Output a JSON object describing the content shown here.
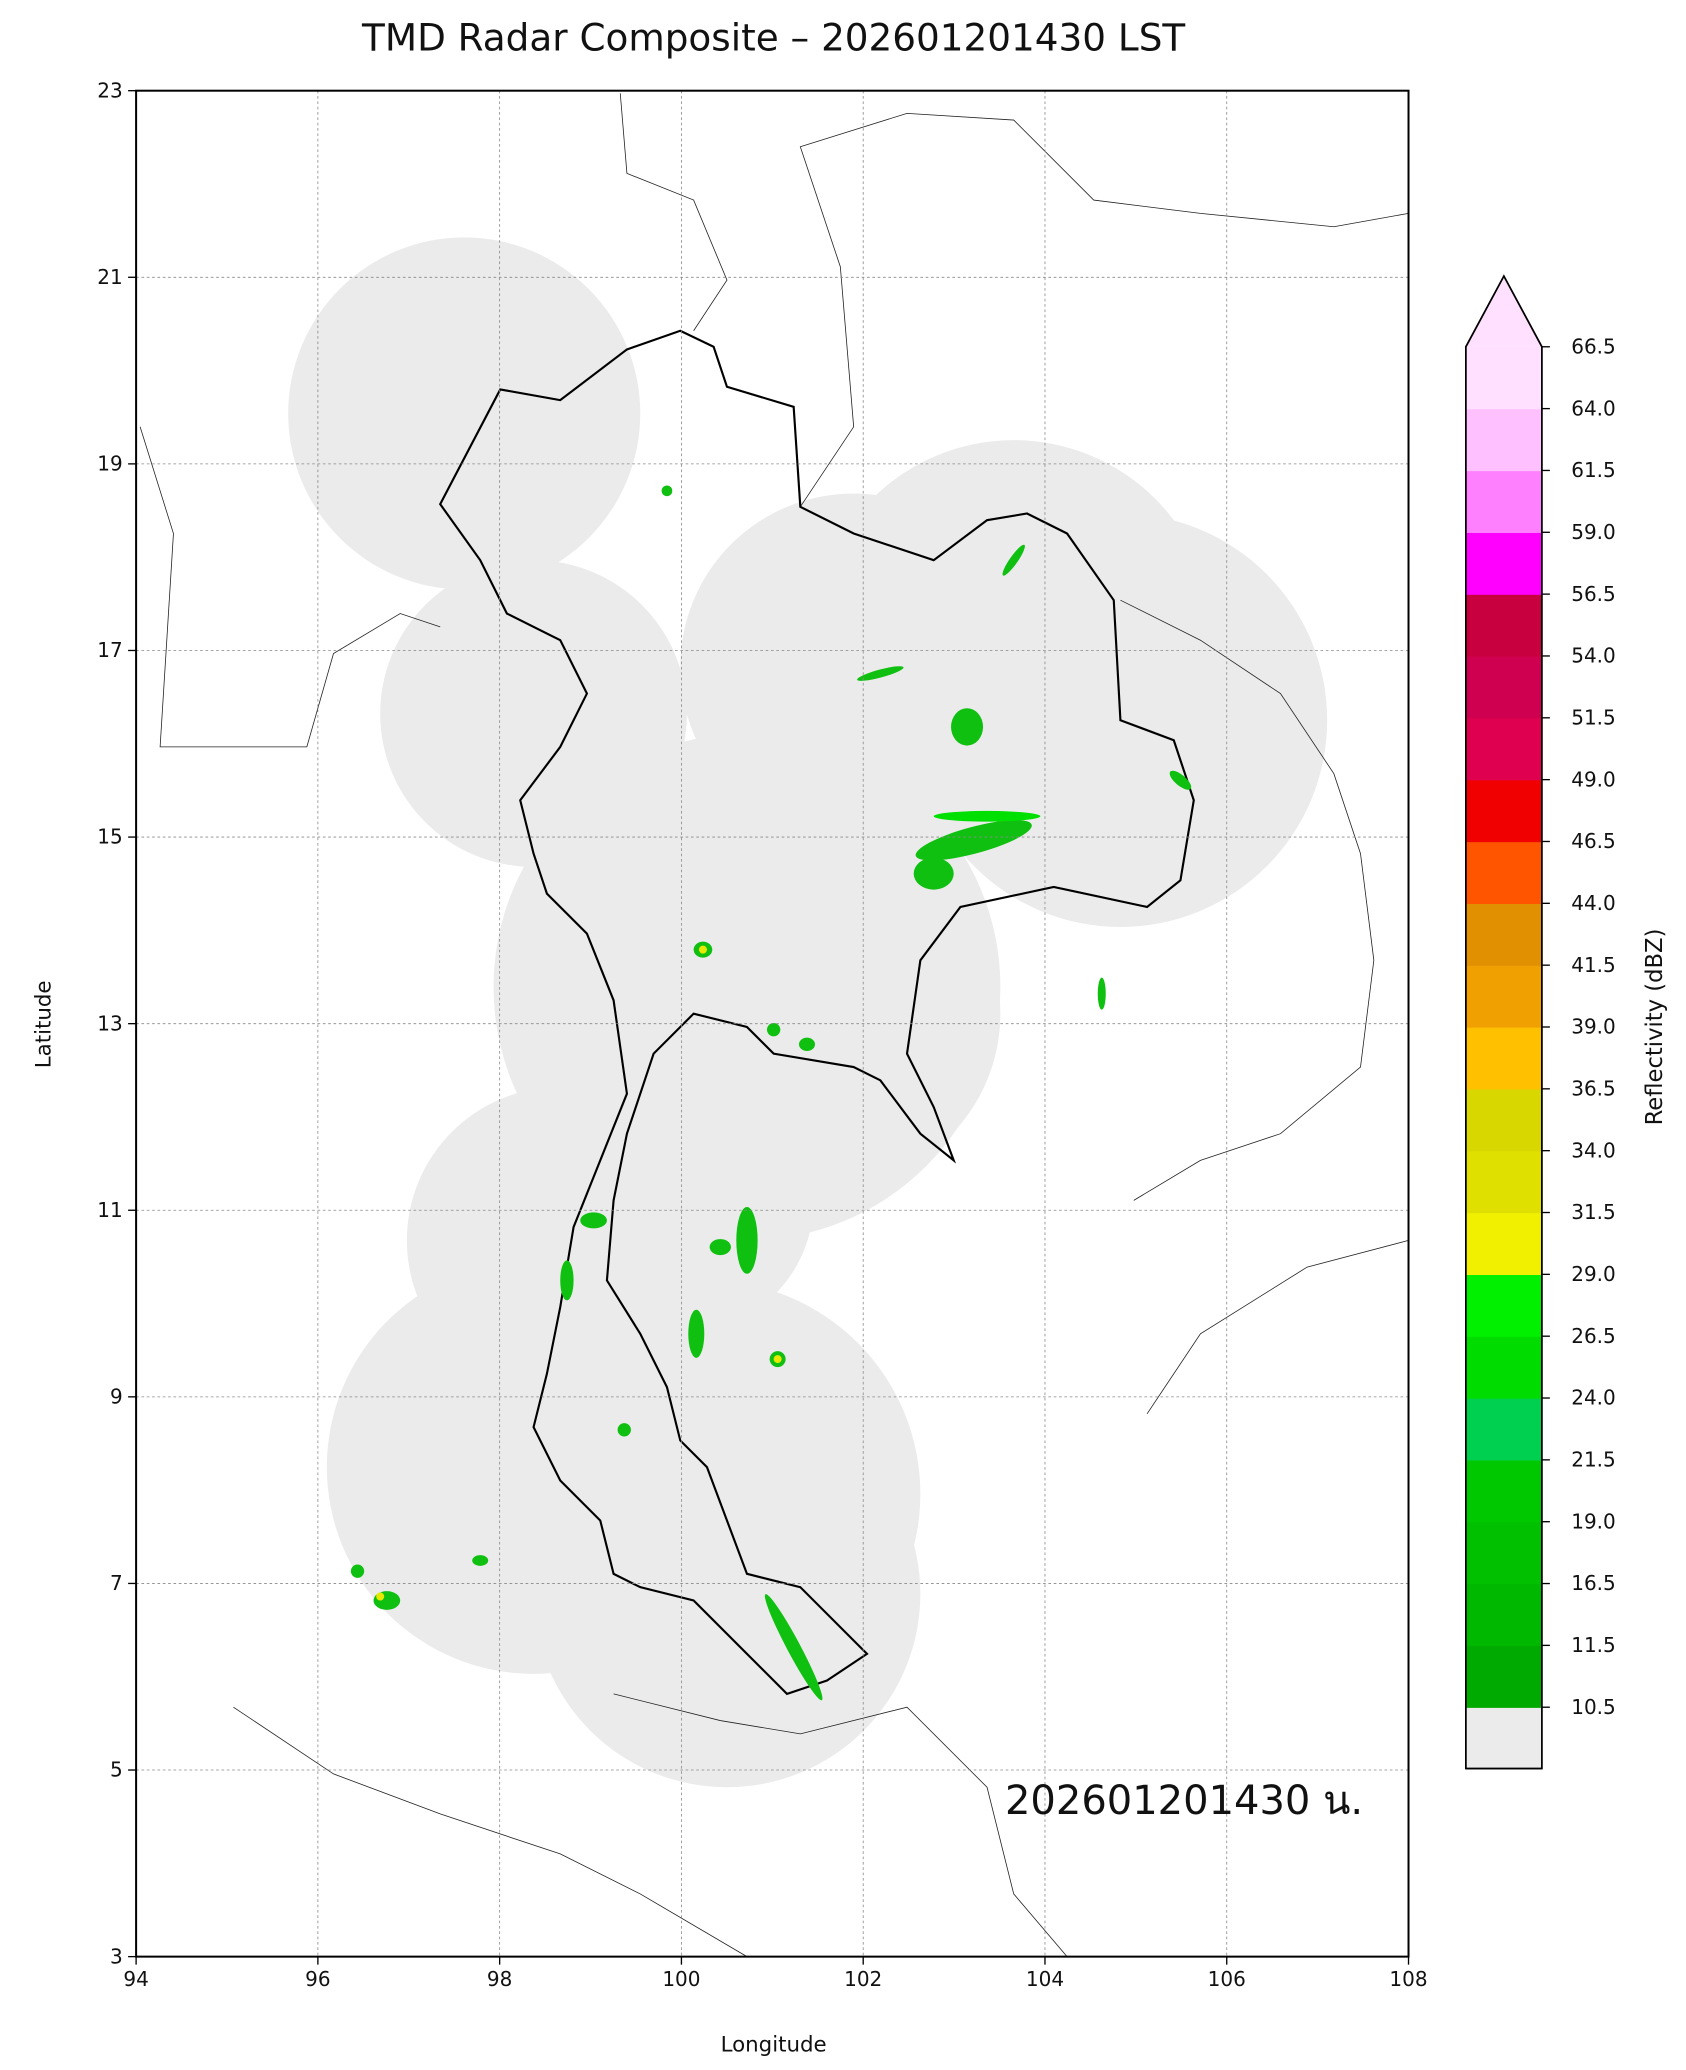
{
  "chart_data": {
    "type": "map",
    "title": "TMD Radar Composite – 202601201430 LST",
    "x_label": "Longitude",
    "y_label": "Latitude",
    "xlim": [
      94,
      108
    ],
    "ylim": [
      3,
      23
    ],
    "xticks": [
      94,
      96,
      98,
      100,
      102,
      104,
      106,
      108
    ],
    "yticks": [
      3,
      5,
      7,
      9,
      11,
      13,
      15,
      17,
      19,
      21,
      23
    ],
    "grid": true,
    "annotation": "202601201430 น.",
    "colorbar": {
      "label": "Reflectivity (dBZ)",
      "ticks": [
        10.5,
        11.5,
        16.5,
        {
          "value": 19,
          "label": "19.0"
        },
        21.5,
        {
          "value": 24,
          "label": "24.0"
        },
        26.5,
        {
          "value": 29,
          "label": "29.0"
        },
        31.5,
        {
          "value": 34,
          "label": "34.0"
        },
        36.5,
        {
          "value": 39,
          "label": "39.0"
        },
        41.5,
        {
          "value": 44,
          "label": "44.0"
        },
        46.5,
        {
          "value": 49,
          "label": "49.0"
        },
        51.5,
        {
          "value": 54,
          "label": "54.0"
        },
        56.5,
        {
          "value": 59,
          "label": "59.0"
        },
        61.5,
        {
          "value": 64,
          "label": "64.0"
        },
        66.5
      ],
      "colors": [
        "#00aa00",
        "#00b800",
        "#00c000",
        "#00c800",
        "#00d050",
        "#00dc00",
        "#00f000",
        "#f0f000",
        "#e0e000",
        "#d8d800",
        "#ffc000",
        "#f0a000",
        "#e09000",
        "#ff5500",
        "#f00000",
        "#e00050",
        "#d00050",
        "#c80040",
        "#ff00ff",
        "#ff80ff",
        "#ffc0ff",
        "#ffe0ff"
      ],
      "over_color": "#ffe0ff",
      "under_color": "#ebebeb"
    }
  }
}
